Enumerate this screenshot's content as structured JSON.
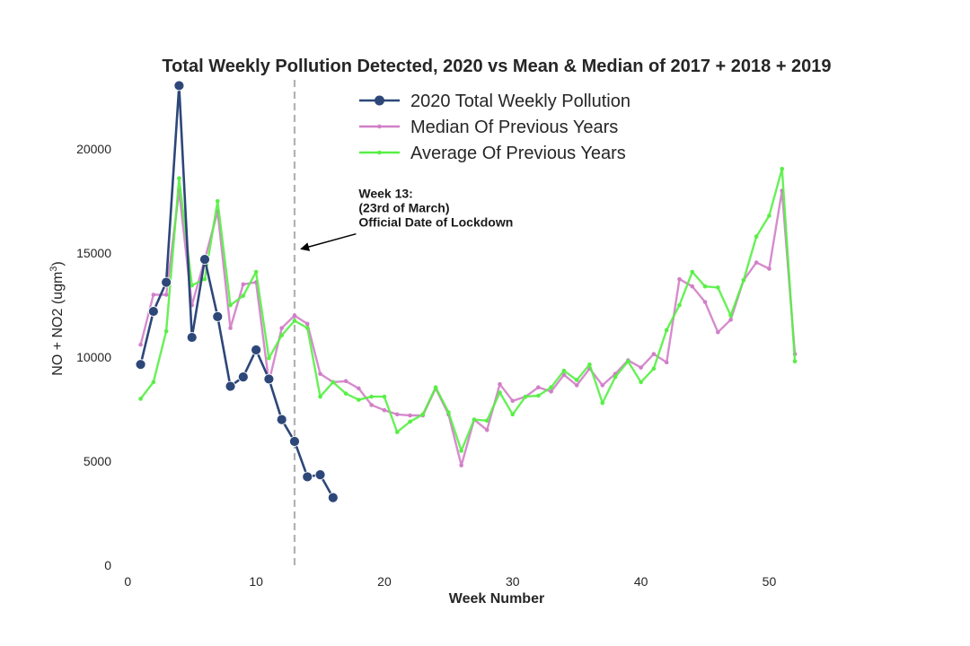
{
  "chart_data": {
    "type": "line",
    "title": "Total Weekly Pollution Detected, 2020 vs Mean & Median of 2017 + 2018 + 2019",
    "xlabel": "Week Number",
    "ylabel": "NO + NO2 (ugm",
    "ylabel_superscript": "3",
    "ylabel_close": ")",
    "xlim": [
      -1,
      59
    ],
    "ylim": [
      0,
      23500
    ],
    "xticks": [
      0,
      10,
      20,
      30,
      40,
      50
    ],
    "yticks": [
      0,
      5000,
      10000,
      15000,
      20000
    ],
    "grid": false,
    "legend_position": "top-center",
    "series": [
      {
        "name": "2020 Total Weekly Pollution",
        "color": "#2d4779",
        "marker": "large-circle",
        "x": [
          1,
          2,
          3,
          4,
          5,
          6,
          7,
          8,
          9,
          10,
          11,
          12,
          13,
          14,
          15,
          16
        ],
        "values": [
          9650,
          12200,
          13600,
          23050,
          10950,
          14700,
          11950,
          8600,
          9050,
          10350,
          8950,
          7000,
          5950,
          4250,
          4350,
          3250
        ]
      },
      {
        "name": "Median Of Previous Years",
        "color": "#d17fc8",
        "marker": "small-dot",
        "x": [
          1,
          2,
          3,
          4,
          5,
          6,
          7,
          8,
          9,
          10,
          11,
          12,
          13,
          14,
          15,
          16,
          17,
          18,
          19,
          20,
          21,
          22,
          23,
          24,
          25,
          26,
          27,
          28,
          29,
          30,
          31,
          32,
          33,
          34,
          35,
          36,
          37,
          38,
          39,
          40,
          41,
          42,
          43,
          44,
          45,
          46,
          47,
          48,
          49,
          50,
          51,
          52
        ],
        "values": [
          10600,
          13000,
          13000,
          18000,
          12500,
          14700,
          17000,
          11400,
          13500,
          13600,
          8800,
          11400,
          12000,
          11600,
          9200,
          8800,
          8850,
          8500,
          7700,
          7450,
          7250,
          7200,
          7200,
          8500,
          7250,
          4800,
          7000,
          6500,
          8700,
          7900,
          8100,
          8550,
          8350,
          9150,
          8650,
          9450,
          8650,
          9200,
          9850,
          9500,
          10150,
          9750,
          13750,
          13400,
          12650,
          11200,
          11800,
          13700,
          14550,
          14250,
          18000,
          10150
        ]
      },
      {
        "name": "Average Of Previous Years",
        "color": "#57ef45",
        "marker": "small-dot",
        "x": [
          1,
          2,
          3,
          4,
          5,
          6,
          7,
          8,
          9,
          10,
          11,
          12,
          13,
          14,
          15,
          16,
          17,
          18,
          19,
          20,
          21,
          22,
          23,
          24,
          25,
          26,
          27,
          28,
          29,
          30,
          31,
          32,
          33,
          34,
          35,
          36,
          37,
          38,
          39,
          40,
          41,
          42,
          43,
          44,
          45,
          46,
          47,
          48,
          49,
          50,
          51,
          52
        ],
        "values": [
          8000,
          8800,
          11250,
          18600,
          13450,
          13750,
          17500,
          12500,
          12950,
          14100,
          9950,
          11050,
          11750,
          11400,
          8100,
          8800,
          8250,
          7950,
          8100,
          8100,
          6400,
          6900,
          7250,
          8550,
          7350,
          5500,
          7000,
          6950,
          8300,
          7250,
          8100,
          8150,
          8550,
          9350,
          8900,
          9650,
          7800,
          9050,
          9800,
          8800,
          9450,
          11300,
          12500,
          14100,
          13400,
          13350,
          12000,
          13700,
          15800,
          16800,
          19050,
          9800
        ]
      }
    ],
    "annotations": [
      {
        "lines": [
          "Week 13:",
          "(23rd of March)",
          "Official Date of Lockdown"
        ],
        "xy": [
          13.5,
          15200
        ],
        "xytext": [
          18,
          17650
        ],
        "arrow": true
      }
    ],
    "vlines": [
      {
        "x": 13,
        "style": "dashed",
        "color": "#b3b3b3"
      }
    ]
  }
}
